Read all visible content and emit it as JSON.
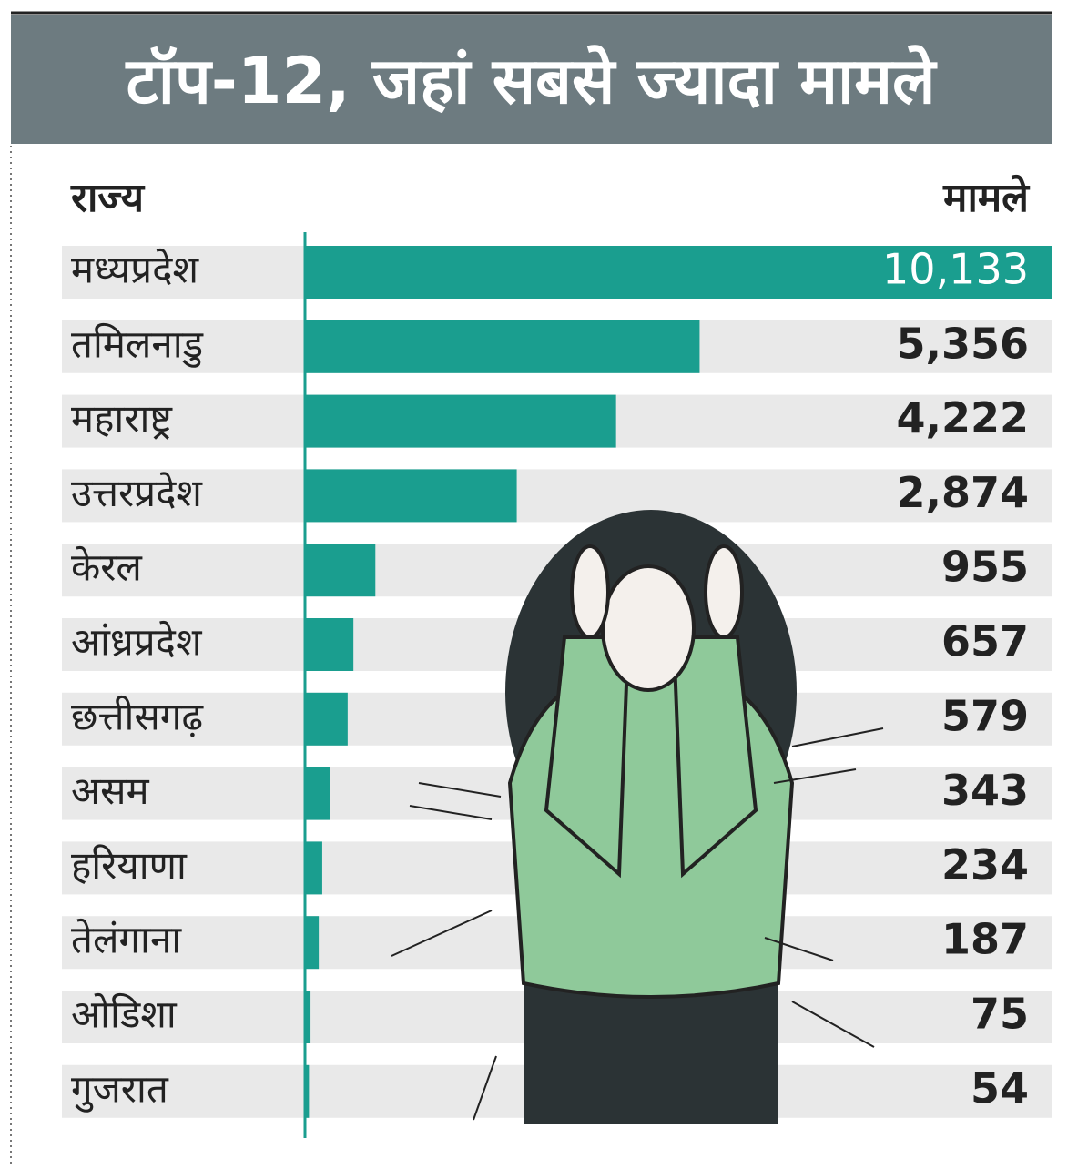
{
  "chart_data": {
    "type": "bar",
    "orientation": "horizontal",
    "title": "टॉप-12, जहां सबसे ज्यादा मामले",
    "category_header": "राज्य",
    "value_header": "मामले",
    "categories": [
      "मध्यप्रदेश",
      "तमिलनाडु",
      "महाराष्ट्र",
      "उत्तरप्रदेश",
      "केरल",
      "आंध्रप्रदेश",
      "छत्तीसगढ़",
      "असम",
      "हरियाणा",
      "तेलंगाना",
      "ओडिशा",
      "गुजरात"
    ],
    "values": [
      10133,
      5356,
      4222,
      2874,
      955,
      657,
      579,
      343,
      234,
      187,
      75,
      54
    ],
    "value_labels": [
      "10,133",
      "5,356",
      "4,222",
      "2,874",
      "955",
      "657",
      "579",
      "343",
      "234",
      "187",
      "75",
      "54"
    ],
    "color": "#1a9e8f"
  }
}
